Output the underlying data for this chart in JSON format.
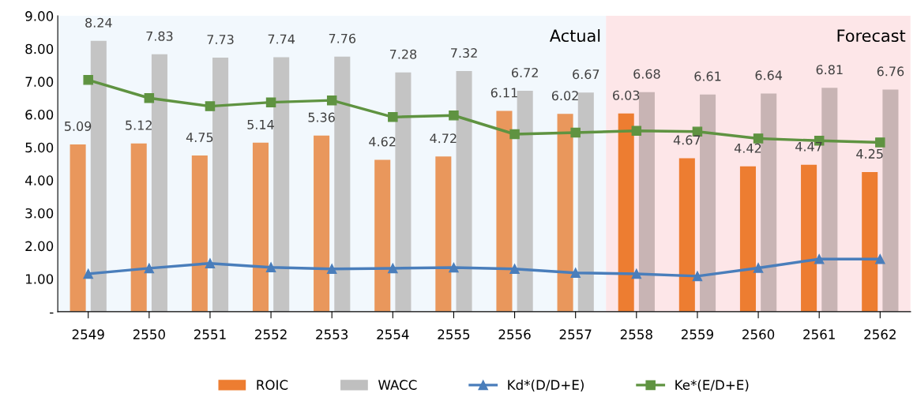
{
  "chart_data": {
    "type": "bar",
    "categories": [
      "2549",
      "2550",
      "2551",
      "2552",
      "2553",
      "2554",
      "2555",
      "2556",
      "2557",
      "2558",
      "2559",
      "2560",
      "2561",
      "2562"
    ],
    "series": [
      {
        "name": "ROIC",
        "color": "#ed7d31",
        "colors": [
          "#e9975c",
          "#e9975c",
          "#e9975c",
          "#e9975c",
          "#e9975c",
          "#e9975c",
          "#e9975c",
          "#e9975c",
          "#e9975c",
          "#ed7d31",
          "#ed7d31",
          "#ed7d31",
          "#ed7d31",
          "#ed7d31"
        ],
        "values": [
          5.09,
          5.12,
          4.75,
          5.14,
          5.36,
          4.62,
          4.72,
          6.11,
          6.02,
          6.03,
          4.67,
          4.42,
          4.47,
          4.25
        ],
        "value_labels": [
          "5.09",
          "5.12",
          "4.75",
          "5.14",
          "5.36",
          "4.62",
          "4.72",
          "6.11",
          "6.02",
          "6.03",
          "4.67",
          "4.42",
          "4.47",
          "4.25"
        ]
      },
      {
        "name": "WACC",
        "color": "#bfbfbf",
        "colors": [
          "#c4c4c4",
          "#c4c4c4",
          "#c4c4c4",
          "#c4c4c4",
          "#c4c4c4",
          "#c4c4c4",
          "#c4c4c4",
          "#c4c4c4",
          "#c4c4c4",
          "#c8b4b4",
          "#c8b4b4",
          "#c8b4b4",
          "#c8b4b4",
          "#c8b4b4"
        ],
        "values": [
          8.24,
          7.83,
          7.73,
          7.74,
          7.76,
          7.28,
          7.32,
          6.72,
          6.67,
          6.68,
          6.61,
          6.64,
          6.81,
          6.76
        ],
        "value_labels": [
          "8.24",
          "7.83",
          "7.73",
          "7.74",
          "7.76",
          "7.28",
          "7.32",
          "6.72",
          "6.67",
          "6.68",
          "6.61",
          "6.64",
          "6.81",
          "6.76"
        ]
      },
      {
        "name": "Kd*(D/D+E)",
        "type": "line",
        "color": "#4a7ebb",
        "marker": "triangle",
        "values": [
          1.15,
          1.32,
          1.47,
          1.35,
          1.3,
          1.32,
          1.34,
          1.3,
          1.18,
          1.15,
          1.08,
          1.33,
          1.6,
          1.6
        ]
      },
      {
        "name": "Ke*(E/D+E)",
        "type": "line",
        "color": "#5f9341",
        "marker": "square",
        "values": [
          7.05,
          6.5,
          6.25,
          6.37,
          6.43,
          5.92,
          5.97,
          5.4,
          5.45,
          5.5,
          5.48,
          5.27,
          5.2,
          5.15
        ]
      }
    ],
    "ylim": [
      0,
      9
    ],
    "yticks": [
      {
        "value": 0,
        "label": "-"
      },
      {
        "value": 1,
        "label": "1.00"
      },
      {
        "value": 2,
        "label": "2.00"
      },
      {
        "value": 3,
        "label": "3.00"
      },
      {
        "value": 4,
        "label": "4.00"
      },
      {
        "value": 5,
        "label": "5.00"
      },
      {
        "value": 6,
        "label": "6.00"
      },
      {
        "value": 7,
        "label": "7.00"
      },
      {
        "value": 8,
        "label": "8.00"
      },
      {
        "value": 9,
        "label": "9.00"
      }
    ],
    "bands": [
      {
        "axis": "x",
        "from": "2549",
        "to": "2557",
        "label": "Actual",
        "color": "#f2f8fd"
      },
      {
        "axis": "x",
        "from": "2558",
        "to": "2562",
        "label": "Forecast",
        "color": "#fde6e8"
      }
    ],
    "grid": false,
    "legend": "bottom"
  }
}
